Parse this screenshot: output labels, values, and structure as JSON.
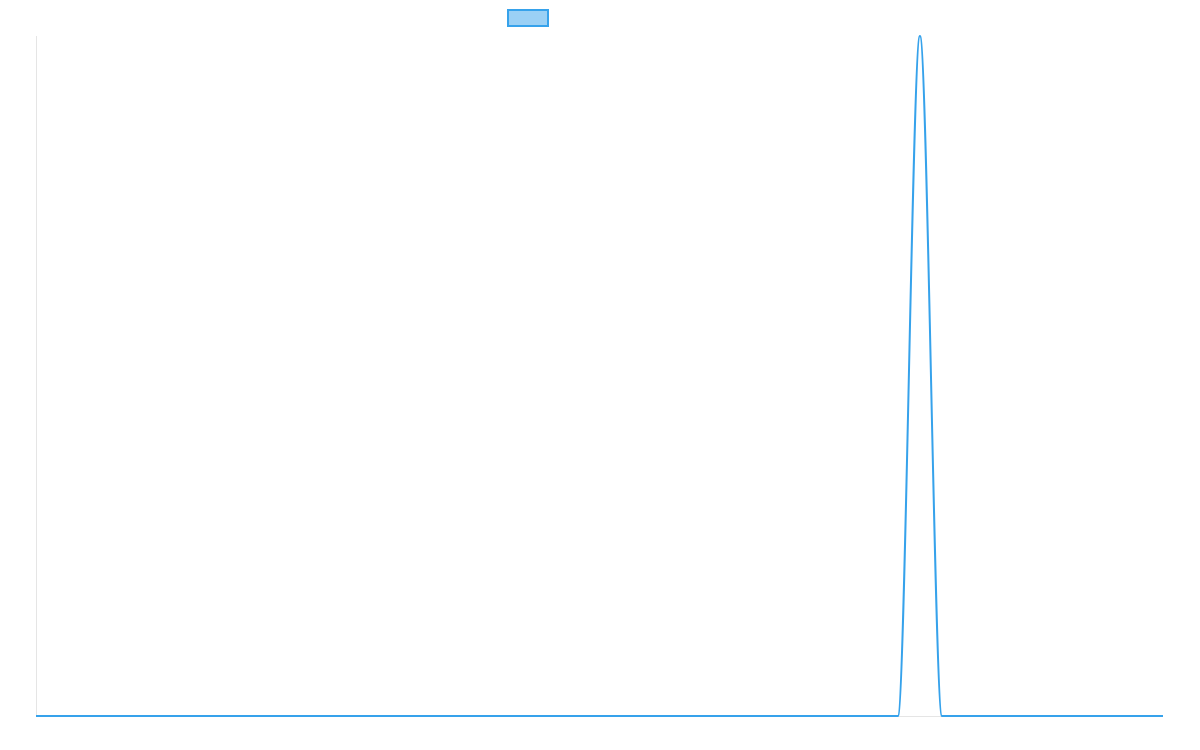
{
  "chart_data": {
    "type": "line",
    "x": [
      0,
      1,
      2,
      3,
      4,
      5,
      6,
      7,
      8,
      9,
      10,
      11,
      12,
      13,
      14,
      15,
      16,
      17,
      18,
      19,
      20,
      21,
      22,
      23,
      24,
      25,
      26,
      27,
      28,
      29,
      30,
      31,
      32,
      33,
      34,
      35,
      36,
      37,
      38,
      39,
      40,
      41,
      42,
      43,
      44,
      45,
      46,
      47,
      48,
      49,
      50,
      51
    ],
    "series": [
      {
        "name": "",
        "values": [
          0,
          0,
          0,
          0,
          0,
          0,
          0,
          0,
          0,
          0,
          0,
          0,
          0,
          0,
          0,
          0,
          0,
          0,
          0,
          0,
          0,
          0,
          0,
          0,
          0,
          0,
          0,
          0,
          0,
          0,
          0,
          0,
          0,
          0,
          0,
          0,
          0,
          0,
          0,
          0,
          1,
          0,
          0,
          0,
          0,
          0,
          0,
          0,
          0,
          0,
          0,
          0
        ],
        "color": "#36a2eb",
        "fill": "#9ad0f5"
      }
    ],
    "xlim": [
      0,
      51
    ],
    "ylim": [
      0,
      1
    ],
    "legend": "top-center",
    "grid": false,
    "title": "",
    "xlabel": "",
    "ylabel": ""
  }
}
